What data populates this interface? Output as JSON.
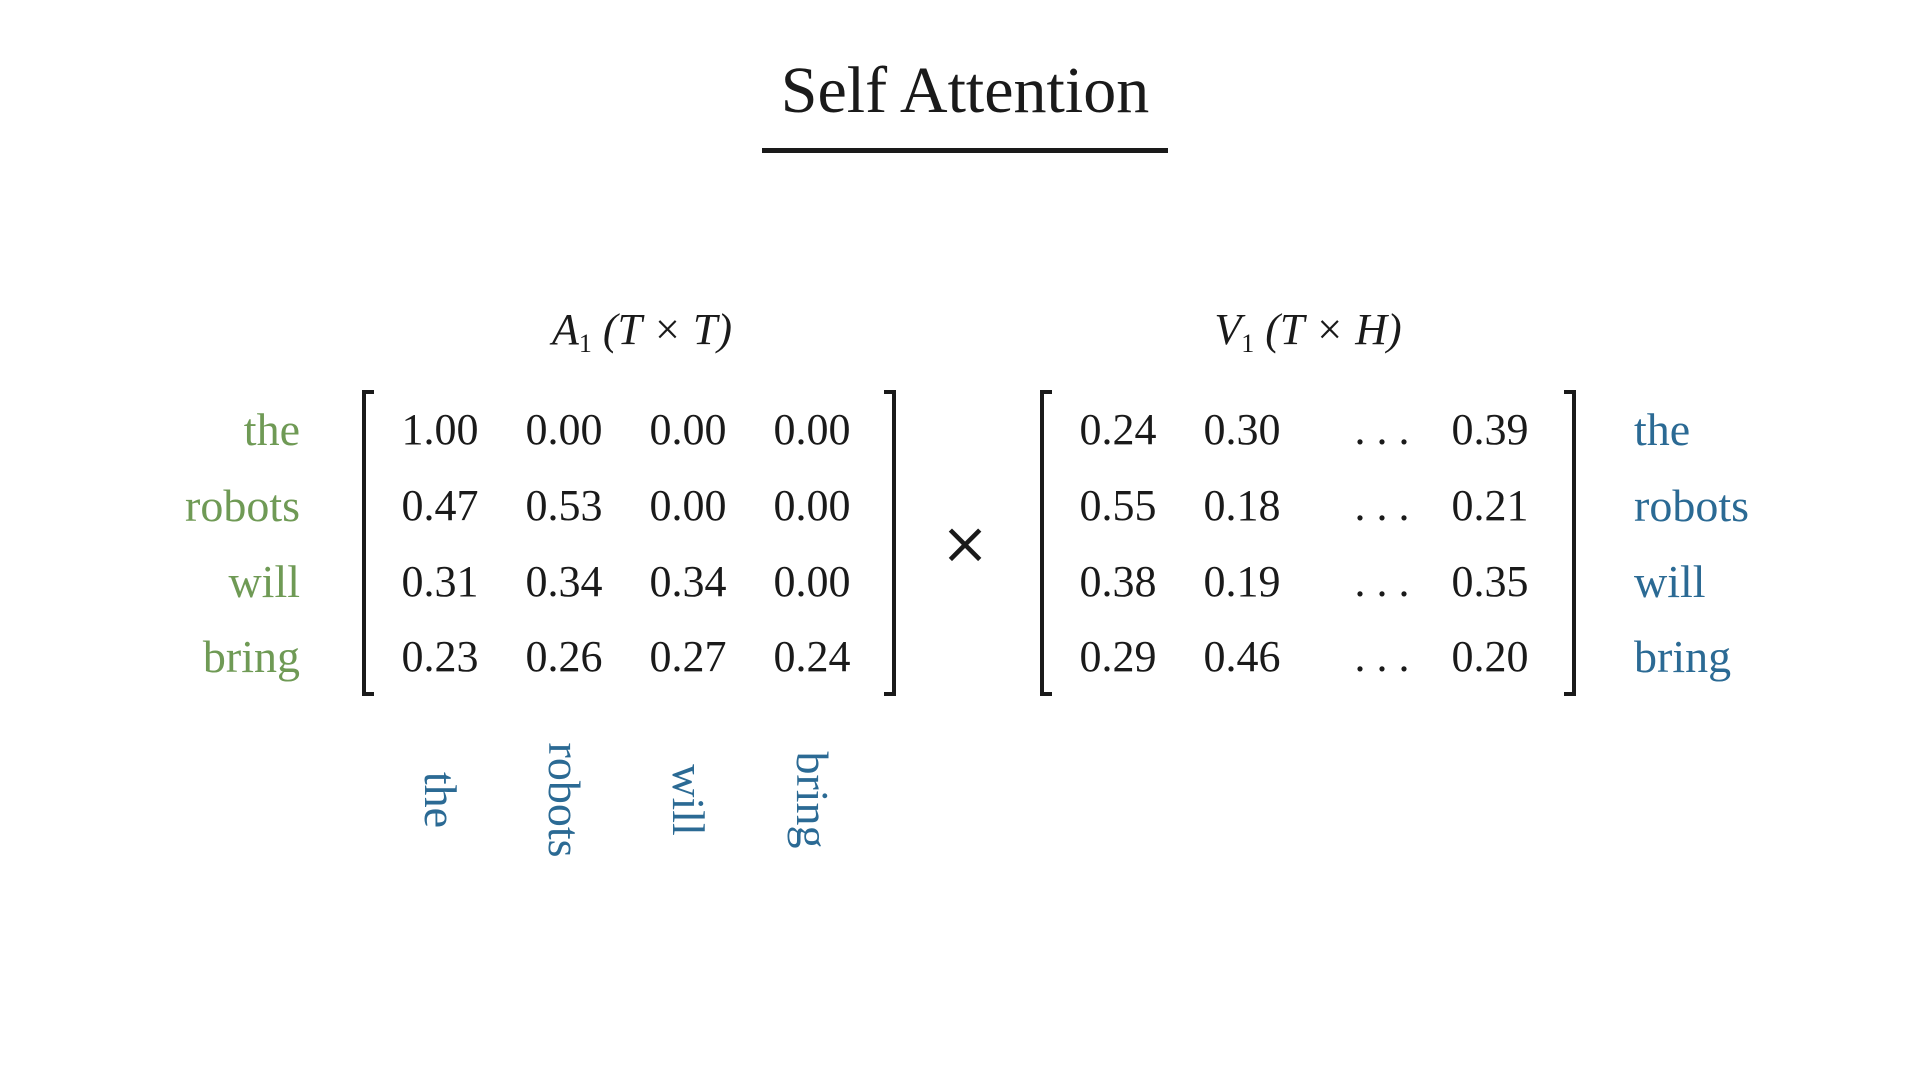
{
  "title": "Self Attention",
  "colors": {
    "green": "#6f9a55",
    "blue": "#2b6a94",
    "ink": "#1a1a1a"
  },
  "matrix_a": {
    "caption": {
      "symbol": "A",
      "subscript": "1",
      "dims": "(T × T)"
    },
    "row_labels": [
      "the",
      "robots",
      "will",
      "bring"
    ],
    "col_labels": [
      "the",
      "robots",
      "will",
      "bring"
    ],
    "rows": [
      [
        "1.00",
        "0.00",
        "0.00",
        "0.00"
      ],
      [
        "0.47",
        "0.53",
        "0.00",
        "0.00"
      ],
      [
        "0.31",
        "0.34",
        "0.34",
        "0.00"
      ],
      [
        "0.23",
        "0.26",
        "0.27",
        "0.24"
      ]
    ]
  },
  "operator": "×",
  "matrix_v": {
    "caption": {
      "symbol": "V",
      "subscript": "1",
      "dims": "(T × H)"
    },
    "row_labels": [
      "the",
      "robots",
      "will",
      "bring"
    ],
    "rows": [
      [
        "0.24",
        "0.30",
        ". . .",
        "0.39"
      ],
      [
        "0.55",
        "0.18",
        ". . .",
        "0.21"
      ],
      [
        "0.38",
        "0.19",
        ". . .",
        "0.35"
      ],
      [
        "0.29",
        "0.46",
        ". . .",
        "0.20"
      ]
    ]
  }
}
